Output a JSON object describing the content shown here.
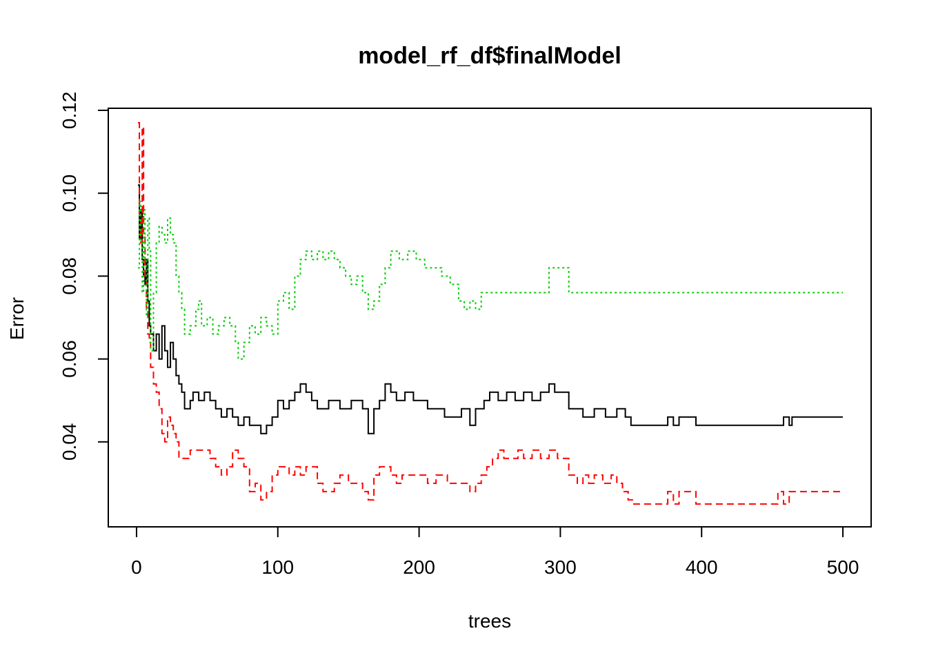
{
  "chart_data": {
    "type": "line",
    "title": "model_rf_df$finalModel",
    "xlabel": "trees",
    "ylabel": "Error",
    "xlim": [
      -20,
      520
    ],
    "ylim": [
      0.0195,
      0.1205
    ],
    "x_ticks": [
      0,
      100,
      200,
      300,
      400,
      500
    ],
    "x_tick_labels": [
      "0",
      "100",
      "200",
      "300",
      "400",
      "500"
    ],
    "y_ticks": [
      0.04,
      0.06,
      0.08,
      0.1,
      0.12
    ],
    "y_tick_labels": [
      "0.04",
      "0.06",
      "0.08",
      "0.10",
      "0.12"
    ],
    "grid": false,
    "legend": "none",
    "series": [
      {
        "color": "#000000",
        "line_style": "solid",
        "points": [
          [
            1,
            0.102
          ],
          [
            2,
            0.089
          ],
          [
            3,
            0.096
          ],
          [
            4,
            0.084
          ],
          [
            5,
            0.08
          ],
          [
            6,
            0.078
          ],
          [
            7,
            0.084
          ],
          [
            8,
            0.074
          ],
          [
            9,
            0.068
          ],
          [
            10,
            0.066
          ],
          [
            12,
            0.062
          ],
          [
            14,
            0.066
          ],
          [
            16,
            0.06
          ],
          [
            18,
            0.068
          ],
          [
            20,
            0.062
          ],
          [
            22,
            0.058
          ],
          [
            24,
            0.064
          ],
          [
            26,
            0.06
          ],
          [
            28,
            0.056
          ],
          [
            30,
            0.054
          ],
          [
            32,
            0.052
          ],
          [
            34,
            0.048
          ],
          [
            38,
            0.05
          ],
          [
            40,
            0.052
          ],
          [
            44,
            0.05
          ],
          [
            48,
            0.052
          ],
          [
            52,
            0.05
          ],
          [
            56,
            0.048
          ],
          [
            60,
            0.046
          ],
          [
            64,
            0.048
          ],
          [
            68,
            0.046
          ],
          [
            72,
            0.044
          ],
          [
            76,
            0.046
          ],
          [
            80,
            0.044
          ],
          [
            84,
            0.044
          ],
          [
            88,
            0.042
          ],
          [
            92,
            0.044
          ],
          [
            96,
            0.046
          ],
          [
            100,
            0.05
          ],
          [
            104,
            0.048
          ],
          [
            108,
            0.05
          ],
          [
            112,
            0.052
          ],
          [
            116,
            0.054
          ],
          [
            120,
            0.052
          ],
          [
            124,
            0.05
          ],
          [
            128,
            0.048
          ],
          [
            136,
            0.05
          ],
          [
            144,
            0.048
          ],
          [
            152,
            0.05
          ],
          [
            156,
            0.05
          ],
          [
            160,
            0.048
          ],
          [
            164,
            0.042
          ],
          [
            168,
            0.048
          ],
          [
            172,
            0.05
          ],
          [
            176,
            0.054
          ],
          [
            180,
            0.052
          ],
          [
            184,
            0.05
          ],
          [
            190,
            0.052
          ],
          [
            196,
            0.05
          ],
          [
            200,
            0.05
          ],
          [
            206,
            0.048
          ],
          [
            212,
            0.048
          ],
          [
            218,
            0.046
          ],
          [
            224,
            0.046
          ],
          [
            230,
            0.048
          ],
          [
            236,
            0.044
          ],
          [
            240,
            0.048
          ],
          [
            246,
            0.05
          ],
          [
            250,
            0.052
          ],
          [
            256,
            0.05
          ],
          [
            262,
            0.052
          ],
          [
            268,
            0.05
          ],
          [
            274,
            0.052
          ],
          [
            280,
            0.05
          ],
          [
            286,
            0.052
          ],
          [
            292,
            0.054
          ],
          [
            296,
            0.052
          ],
          [
            304,
            0.052
          ],
          [
            306,
            0.048
          ],
          [
            312,
            0.048
          ],
          [
            316,
            0.046
          ],
          [
            324,
            0.048
          ],
          [
            332,
            0.046
          ],
          [
            340,
            0.048
          ],
          [
            346,
            0.046
          ],
          [
            350,
            0.044
          ],
          [
            370,
            0.044
          ],
          [
            376,
            0.046
          ],
          [
            380,
            0.044
          ],
          [
            384,
            0.046
          ],
          [
            396,
            0.044
          ],
          [
            456,
            0.044
          ],
          [
            458,
            0.046
          ],
          [
            462,
            0.044
          ],
          [
            464,
            0.046
          ],
          [
            500,
            0.046
          ]
        ]
      },
      {
        "color": "#ff0000",
        "line_style": "dashed",
        "points": [
          [
            1,
            0.117
          ],
          [
            2,
            0.095
          ],
          [
            3,
            0.088
          ],
          [
            4,
            0.116
          ],
          [
            5,
            0.09
          ],
          [
            6,
            0.079
          ],
          [
            7,
            0.072
          ],
          [
            8,
            0.066
          ],
          [
            9,
            0.064
          ],
          [
            10,
            0.058
          ],
          [
            12,
            0.054
          ],
          [
            14,
            0.052
          ],
          [
            16,
            0.048
          ],
          [
            18,
            0.042
          ],
          [
            20,
            0.04
          ],
          [
            22,
            0.046
          ],
          [
            24,
            0.044
          ],
          [
            26,
            0.042
          ],
          [
            28,
            0.04
          ],
          [
            30,
            0.036
          ],
          [
            34,
            0.036
          ],
          [
            38,
            0.038
          ],
          [
            44,
            0.038
          ],
          [
            48,
            0.038
          ],
          [
            52,
            0.036
          ],
          [
            56,
            0.034
          ],
          [
            60,
            0.032
          ],
          [
            64,
            0.034
          ],
          [
            68,
            0.038
          ],
          [
            72,
            0.036
          ],
          [
            76,
            0.034
          ],
          [
            80,
            0.028
          ],
          [
            84,
            0.03
          ],
          [
            88,
            0.026
          ],
          [
            92,
            0.028
          ],
          [
            96,
            0.032
          ],
          [
            100,
            0.034
          ],
          [
            104,
            0.034
          ],
          [
            108,
            0.032
          ],
          [
            112,
            0.034
          ],
          [
            116,
            0.032
          ],
          [
            120,
            0.034
          ],
          [
            124,
            0.034
          ],
          [
            128,
            0.03
          ],
          [
            132,
            0.028
          ],
          [
            136,
            0.028
          ],
          [
            140,
            0.03
          ],
          [
            144,
            0.032
          ],
          [
            150,
            0.03
          ],
          [
            156,
            0.03
          ],
          [
            160,
            0.028
          ],
          [
            164,
            0.026
          ],
          [
            168,
            0.032
          ],
          [
            172,
            0.034
          ],
          [
            176,
            0.034
          ],
          [
            180,
            0.032
          ],
          [
            184,
            0.03
          ],
          [
            188,
            0.032
          ],
          [
            194,
            0.032
          ],
          [
            200,
            0.032
          ],
          [
            206,
            0.03
          ],
          [
            212,
            0.032
          ],
          [
            216,
            0.032
          ],
          [
            220,
            0.03
          ],
          [
            224,
            0.03
          ],
          [
            228,
            0.03
          ],
          [
            232,
            0.03
          ],
          [
            236,
            0.028
          ],
          [
            240,
            0.03
          ],
          [
            244,
            0.032
          ],
          [
            248,
            0.034
          ],
          [
            252,
            0.036
          ],
          [
            256,
            0.038
          ],
          [
            260,
            0.036
          ],
          [
            266,
            0.036
          ],
          [
            270,
            0.038
          ],
          [
            274,
            0.036
          ],
          [
            280,
            0.038
          ],
          [
            286,
            0.036
          ],
          [
            292,
            0.038
          ],
          [
            298,
            0.036
          ],
          [
            306,
            0.032
          ],
          [
            312,
            0.03
          ],
          [
            316,
            0.032
          ],
          [
            320,
            0.03
          ],
          [
            324,
            0.032
          ],
          [
            330,
            0.03
          ],
          [
            336,
            0.032
          ],
          [
            340,
            0.03
          ],
          [
            344,
            0.028
          ],
          [
            348,
            0.026
          ],
          [
            352,
            0.025
          ],
          [
            374,
            0.025
          ],
          [
            376,
            0.028
          ],
          [
            380,
            0.025
          ],
          [
            384,
            0.028
          ],
          [
            396,
            0.025
          ],
          [
            452,
            0.025
          ],
          [
            454,
            0.028
          ],
          [
            458,
            0.025
          ],
          [
            462,
            0.028
          ],
          [
            500,
            0.028
          ]
        ]
      },
      {
        "color": "#00cd00",
        "line_style": "dotted",
        "points": [
          [
            1,
            0.082
          ],
          [
            2,
            0.098
          ],
          [
            3,
            0.088
          ],
          [
            4,
            0.076
          ],
          [
            5,
            0.096
          ],
          [
            6,
            0.084
          ],
          [
            7,
            0.07
          ],
          [
            8,
            0.094
          ],
          [
            9,
            0.086
          ],
          [
            10,
            0.062
          ],
          [
            12,
            0.076
          ],
          [
            14,
            0.088
          ],
          [
            16,
            0.092
          ],
          [
            18,
            0.09
          ],
          [
            20,
            0.088
          ],
          [
            22,
            0.094
          ],
          [
            24,
            0.09
          ],
          [
            26,
            0.088
          ],
          [
            28,
            0.08
          ],
          [
            30,
            0.076
          ],
          [
            32,
            0.072
          ],
          [
            34,
            0.066
          ],
          [
            38,
            0.068
          ],
          [
            42,
            0.072
          ],
          [
            44,
            0.074
          ],
          [
            46,
            0.068
          ],
          [
            50,
            0.07
          ],
          [
            54,
            0.066
          ],
          [
            58,
            0.068
          ],
          [
            62,
            0.07
          ],
          [
            66,
            0.068
          ],
          [
            70,
            0.064
          ],
          [
            72,
            0.06
          ],
          [
            76,
            0.064
          ],
          [
            80,
            0.068
          ],
          [
            84,
            0.066
          ],
          [
            88,
            0.07
          ],
          [
            92,
            0.068
          ],
          [
            96,
            0.066
          ],
          [
            100,
            0.074
          ],
          [
            104,
            0.076
          ],
          [
            108,
            0.072
          ],
          [
            112,
            0.08
          ],
          [
            116,
            0.084
          ],
          [
            120,
            0.086
          ],
          [
            124,
            0.084
          ],
          [
            128,
            0.086
          ],
          [
            132,
            0.084
          ],
          [
            136,
            0.086
          ],
          [
            140,
            0.084
          ],
          [
            144,
            0.082
          ],
          [
            148,
            0.08
          ],
          [
            152,
            0.078
          ],
          [
            156,
            0.08
          ],
          [
            160,
            0.076
          ],
          [
            164,
            0.072
          ],
          [
            168,
            0.074
          ],
          [
            172,
            0.078
          ],
          [
            176,
            0.082
          ],
          [
            180,
            0.086
          ],
          [
            186,
            0.084
          ],
          [
            192,
            0.086
          ],
          [
            198,
            0.084
          ],
          [
            204,
            0.082
          ],
          [
            210,
            0.082
          ],
          [
            216,
            0.08
          ],
          [
            222,
            0.078
          ],
          [
            228,
            0.074
          ],
          [
            232,
            0.072
          ],
          [
            236,
            0.074
          ],
          [
            240,
            0.072
          ],
          [
            244,
            0.076
          ],
          [
            290,
            0.076
          ],
          [
            292,
            0.082
          ],
          [
            304,
            0.082
          ],
          [
            306,
            0.076
          ],
          [
            500,
            0.076
          ]
        ]
      }
    ]
  }
}
